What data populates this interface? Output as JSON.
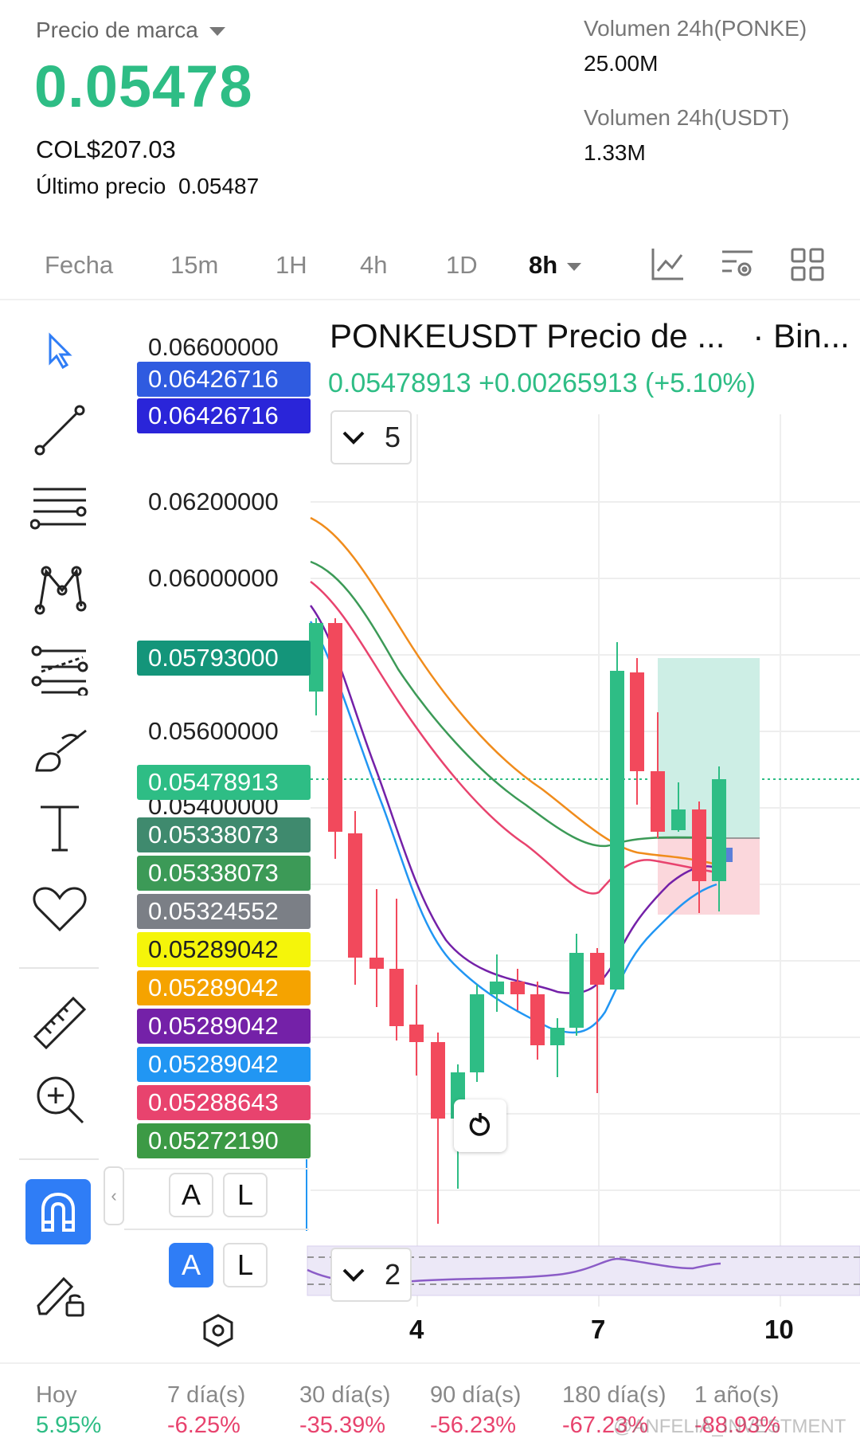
{
  "header": {
    "mark_price_label": "Precio de marca",
    "mark_price": "0.05478",
    "fiat_price": "COL$207.03",
    "last_price_label": "Último precio",
    "last_price": "0.05487",
    "vol1_label": "Volumen 24h(PONKE)",
    "vol1_value": "25.00M",
    "vol2_label": "Volumen 24h(USDT)",
    "vol2_value": "1.33M"
  },
  "tabs": {
    "items": [
      "Fecha",
      "15m",
      "1H",
      "4h",
      "1D",
      "8h"
    ],
    "active": "8h"
  },
  "chart": {
    "title": "PONKEUSDT Precio de ...",
    "source": "· Bin...",
    "ohlc_line": "0.05478913  +0.00265913 (+5.10%)",
    "indicators_count": "5",
    "sub_indicators_count": "2",
    "axis_labels": [
      "0.06600000",
      "0.06200000",
      "0.06000000",
      "0.05600000",
      "0.05400000"
    ],
    "price_tags": [
      {
        "value": "0.06426716",
        "color": "#2f5be0"
      },
      {
        "value": "0.06426716",
        "color": "#2a25d9"
      },
      {
        "value": "0.05793000",
        "color": "#14957a"
      },
      {
        "value": "0.05478913",
        "color": "#2ebd85"
      },
      {
        "value": "0.05338073",
        "color": "#3f8a6e"
      },
      {
        "value": "0.05338073",
        "color": "#3c9a57"
      },
      {
        "value": "0.05324552",
        "color": "#7b7f86"
      },
      {
        "value": "0.05289042",
        "color": "#f5f50a"
      },
      {
        "value": "0.05289042",
        "color": "#f5a300"
      },
      {
        "value": "0.05289042",
        "color": "#7421a8"
      },
      {
        "value": "0.05289042",
        "color": "#2196f3"
      },
      {
        "value": "0.05288643",
        "color": "#e8436e"
      },
      {
        "value": "0.05272190",
        "color": "#3c9a45"
      }
    ],
    "x_labels": [
      "4",
      "7",
      "10"
    ],
    "al_a": "A",
    "al_l": "L"
  },
  "performance": [
    {
      "label": "Hoy",
      "value": "5.95%",
      "color": "#2ebd85"
    },
    {
      "label": "7 día(s)",
      "value": "-6.25%",
      "color": "#e8436e"
    },
    {
      "label": "30 día(s)",
      "value": "-35.39%",
      "color": "#e8436e"
    },
    {
      "label": "90 día(s)",
      "value": "-56.23%",
      "color": "#e8436e"
    },
    {
      "label": "180 día(s)",
      "value": "-67.23%",
      "color": "#e8436e"
    },
    {
      "label": "1 año(s)",
      "value": "-88.93%",
      "color": "#e8436e"
    }
  ],
  "watermark": "@ANFELIA_INVESTMENT"
}
